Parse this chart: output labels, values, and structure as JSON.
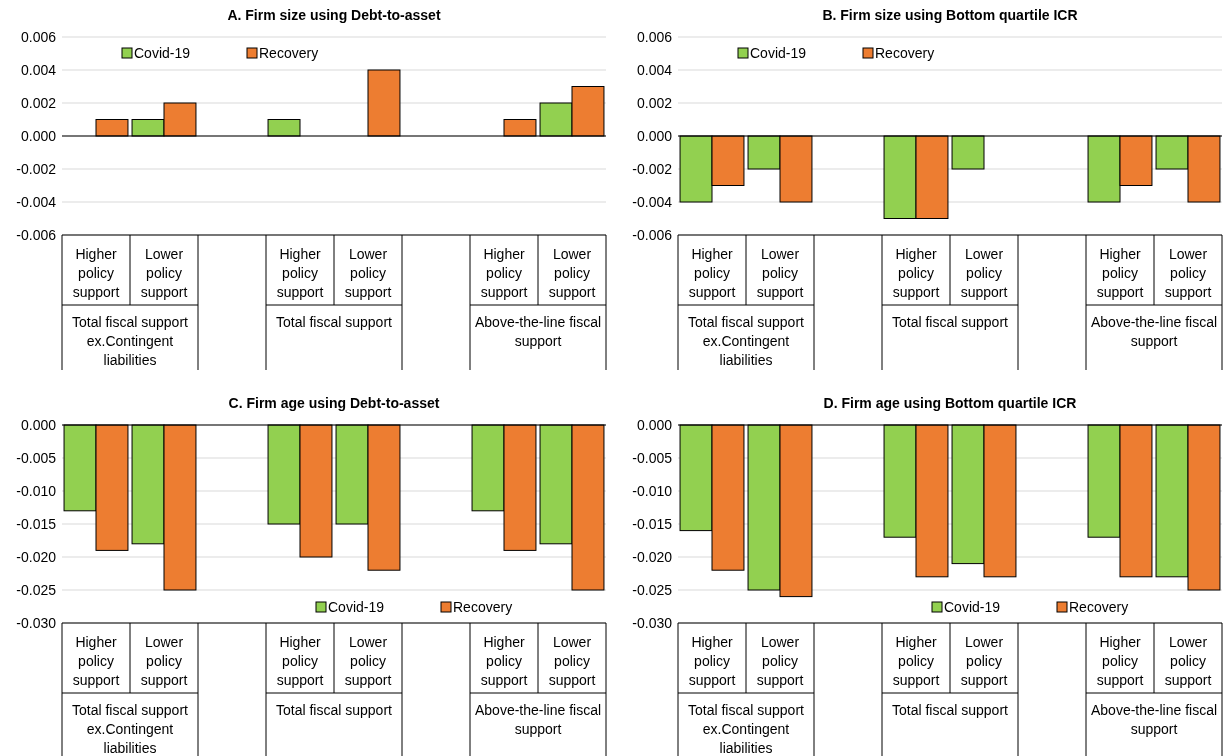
{
  "chart_data": [
    {
      "type": "bar",
      "title": "A. Firm size using Debt-to-asset",
      "categories": [
        "Higher policy support",
        "Lower policy support",
        null,
        "Higher policy support",
        "Lower policy support",
        null,
        "Higher policy support",
        "Lower policy support"
      ],
      "series": [
        {
          "name": "Covid-19",
          "color": "#92d050",
          "values": [
            0,
            0.001,
            null,
            0.001,
            0,
            null,
            0,
            0.002
          ]
        },
        {
          "name": "Recovery",
          "color": "#ed7d31",
          "values": [
            0.001,
            0.002,
            null,
            0,
            0.004,
            null,
            0.001,
            0.003
          ]
        }
      ],
      "ylim": [
        -0.006,
        0.006
      ],
      "yticks": [
        {
          "value": -0.006,
          "label": "-0.006"
        },
        {
          "value": -0.004,
          "label": "-0.004"
        },
        {
          "value": -0.002,
          "label": "-0.002"
        },
        {
          "value": 0,
          "label": "0.000"
        },
        {
          "value": 0.002,
          "label": "0.002"
        },
        {
          "value": 0.004,
          "label": "0.004"
        },
        {
          "value": 0.006,
          "label": "0.006"
        }
      ],
      "grid": "y",
      "legend": "top left",
      "annotations": [
        "Total fiscal support ex.Contingent liabilities",
        "Total fiscal support",
        "Above-the-line fiscal support"
      ]
    },
    {
      "type": "bar",
      "title": "B. Firm size using Bottom quartile ICR",
      "categories": [
        "Higher policy support",
        "Lower policy support",
        null,
        "Higher policy support",
        "Lower policy support",
        null,
        "Higher policy support",
        "Lower policy support"
      ],
      "series": [
        {
          "name": "Covid-19",
          "color": "#92d050",
          "values": [
            -0.004,
            -0.002,
            null,
            -0.005,
            -0.002,
            null,
            -0.004,
            -0.002
          ]
        },
        {
          "name": "Recovery",
          "color": "#ed7d31",
          "values": [
            -0.003,
            -0.004,
            null,
            -0.005,
            0,
            null,
            -0.003,
            -0.004
          ]
        }
      ],
      "ylim": [
        -0.006,
        0.006
      ],
      "yticks": [
        {
          "value": -0.006,
          "label": "-0.006"
        },
        {
          "value": -0.004,
          "label": "-0.004"
        },
        {
          "value": -0.002,
          "label": "-0.002"
        },
        {
          "value": 0,
          "label": "0.000"
        },
        {
          "value": 0.002,
          "label": "0.002"
        },
        {
          "value": 0.004,
          "label": "0.004"
        },
        {
          "value": 0.006,
          "label": "0.006"
        }
      ],
      "grid": "y",
      "legend": "top left",
      "annotations": [
        "Total fiscal support ex.Contingent liabilities",
        "Total fiscal support",
        "Above-the-line fiscal support"
      ]
    },
    {
      "type": "bar",
      "title": "C. Firm age using Debt-to-asset",
      "categories": [
        "Higher policy support",
        "Lower policy support",
        null,
        "Higher policy support",
        "Lower policy support",
        null,
        "Higher policy support",
        "Lower policy support"
      ],
      "series": [
        {
          "name": "Covid-19",
          "color": "#92d050",
          "values": [
            -0.013,
            -0.018,
            null,
            -0.015,
            -0.015,
            null,
            -0.013,
            -0.018
          ]
        },
        {
          "name": "Recovery",
          "color": "#ed7d31",
          "values": [
            -0.019,
            -0.025,
            null,
            -0.02,
            -0.022,
            null,
            -0.019,
            -0.025
          ]
        }
      ],
      "ylim": [
        -0.03,
        0
      ],
      "yticks": [
        {
          "value": -0.03,
          "label": "-0.030"
        },
        {
          "value": -0.025,
          "label": "-0.025"
        },
        {
          "value": -0.02,
          "label": "-0.020"
        },
        {
          "value": -0.015,
          "label": "-0.015"
        },
        {
          "value": -0.01,
          "label": "-0.010"
        },
        {
          "value": -0.005,
          "label": "-0.005"
        },
        {
          "value": 0,
          "label": "0.000"
        }
      ],
      "grid": "y",
      "legend": "bottom right",
      "annotations": [
        "Total fiscal support ex.Contingent liabilities",
        "Total fiscal support",
        "Above-the-line fiscal support"
      ]
    },
    {
      "type": "bar",
      "title": "D. Firm age using Bottom quartile ICR",
      "categories": [
        "Higher policy support",
        "Lower policy support",
        null,
        "Higher policy support",
        "Lower policy support",
        null,
        "Higher policy support",
        "Lower policy support"
      ],
      "series": [
        {
          "name": "Covid-19",
          "color": "#92d050",
          "values": [
            -0.016,
            -0.025,
            null,
            -0.017,
            -0.021,
            null,
            -0.017,
            -0.023
          ]
        },
        {
          "name": "Recovery",
          "color": "#ed7d31",
          "values": [
            -0.022,
            -0.026,
            null,
            -0.023,
            -0.023,
            null,
            -0.023,
            -0.025
          ]
        }
      ],
      "ylim": [
        -0.03,
        0
      ],
      "yticks": [
        {
          "value": -0.03,
          "label": "-0.030"
        },
        {
          "value": -0.025,
          "label": "-0.025"
        },
        {
          "value": -0.02,
          "label": "-0.020"
        },
        {
          "value": -0.015,
          "label": "-0.015"
        },
        {
          "value": -0.01,
          "label": "-0.010"
        },
        {
          "value": -0.005,
          "label": "-0.005"
        },
        {
          "value": 0,
          "label": "0.000"
        }
      ],
      "grid": "y",
      "legend": "bottom right",
      "annotations": [
        "Total fiscal support ex.Contingent liabilities",
        "Total fiscal support",
        "Above-the-line fiscal support"
      ]
    }
  ]
}
